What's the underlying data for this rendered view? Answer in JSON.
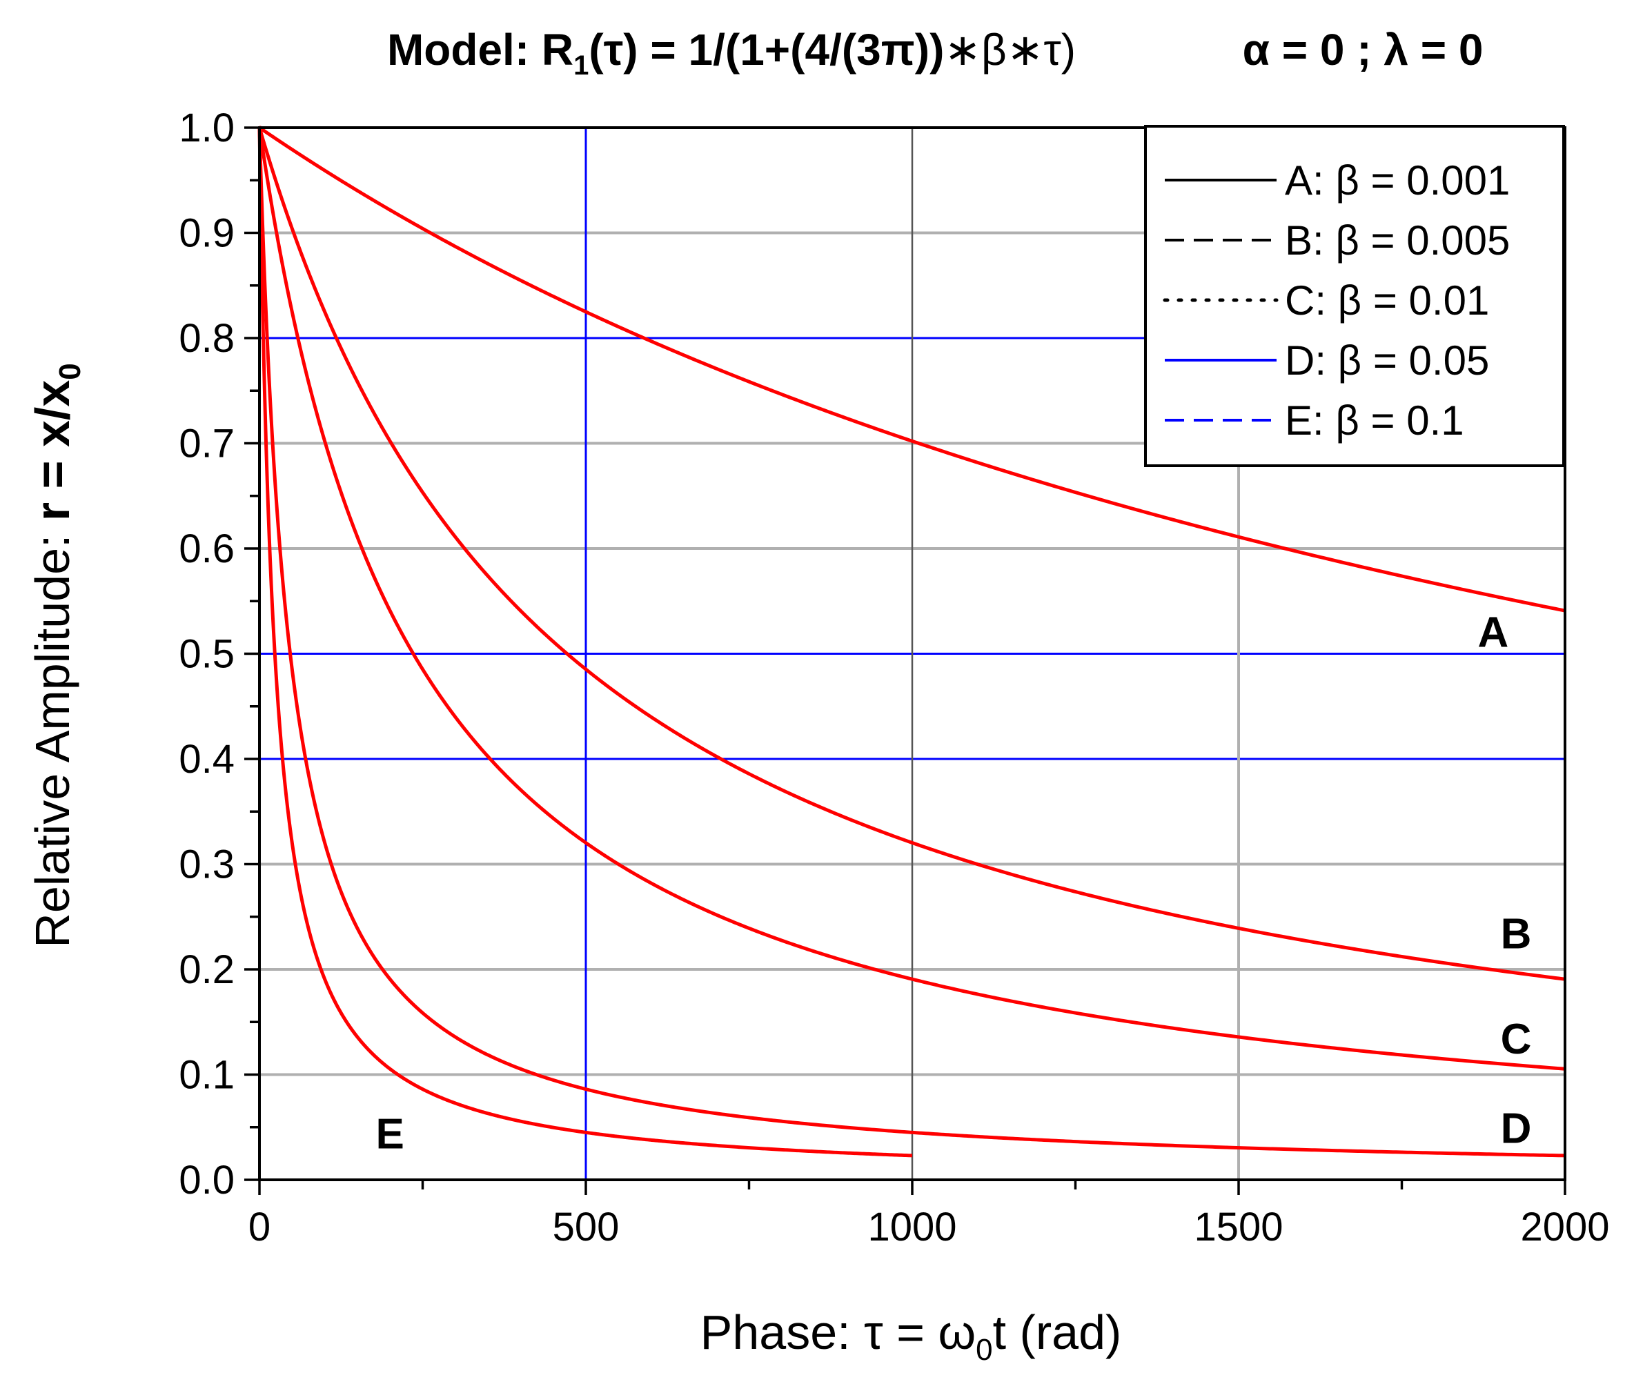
{
  "chart_data": {
    "type": "line",
    "title_parts": {
      "model_prefix": "Model: R",
      "model_sub": "1",
      "model_tau": "(τ) = 1/(1+(4/(3π))",
      "model_tail": "∗β∗τ)",
      "params": "α = 0 ; λ = 0"
    },
    "xlabel_parts": {
      "prefix": "Phase: τ = ω",
      "sub": "0",
      "suffix": "t   (rad)"
    },
    "ylabel_parts": {
      "prefix": "Relative Amplitude: ",
      "bold": "r = x/x",
      "sub": "0"
    },
    "xlim": [
      0,
      2000
    ],
    "ylim": [
      0,
      1.0
    ],
    "x_ticks": [
      0,
      500,
      1000,
      1500,
      2000
    ],
    "x_tick_labels": [
      "0",
      "500",
      "1000",
      "1500",
      "2000"
    ],
    "y_ticks": [
      0,
      0.1,
      0.2,
      0.3,
      0.4,
      0.5,
      0.6,
      0.7,
      0.8,
      0.9,
      1.0
    ],
    "y_tick_labels": [
      "0.0",
      "0.1",
      "0.2",
      "0.3",
      "0.4",
      "0.5",
      "0.6",
      "0.7",
      "0.8",
      "0.9",
      "1.0"
    ],
    "grid": true,
    "legend_position": "top-right",
    "formula_coefficient": 0.4244,
    "series": [
      {
        "name": "A: β = 0.001",
        "letter": "A",
        "beta": 0.001,
        "x_max": 2000,
        "legend_style": "solid",
        "legend_color": "#000000",
        "plot_color": "#ff0000"
      },
      {
        "name": "B: β = 0.005",
        "letter": "B",
        "beta": 0.005,
        "x_max": 2000,
        "legend_style": "dash",
        "legend_color": "#000000",
        "plot_color": "#ff0000"
      },
      {
        "name": "C: β = 0.01",
        "letter": "C",
        "beta": 0.01,
        "x_max": 2000,
        "legend_style": "dot",
        "legend_color": "#000000",
        "plot_color": "#ff0000"
      },
      {
        "name": "D: β = 0.05",
        "letter": "D",
        "beta": 0.05,
        "x_max": 2000,
        "legend_style": "solid",
        "legend_color": "#0000ff",
        "plot_color": "#ff0000"
      },
      {
        "name": "E: β = 0.1",
        "letter": "E",
        "beta": 0.1,
        "x_max": 1000,
        "legend_style": "dash",
        "legend_color": "#0000ff",
        "plot_color": "#ff0000"
      }
    ],
    "grid_colors": {
      "gray": "#b0b0b0",
      "blue": "#0000ff",
      "dark": "#555555"
    }
  }
}
